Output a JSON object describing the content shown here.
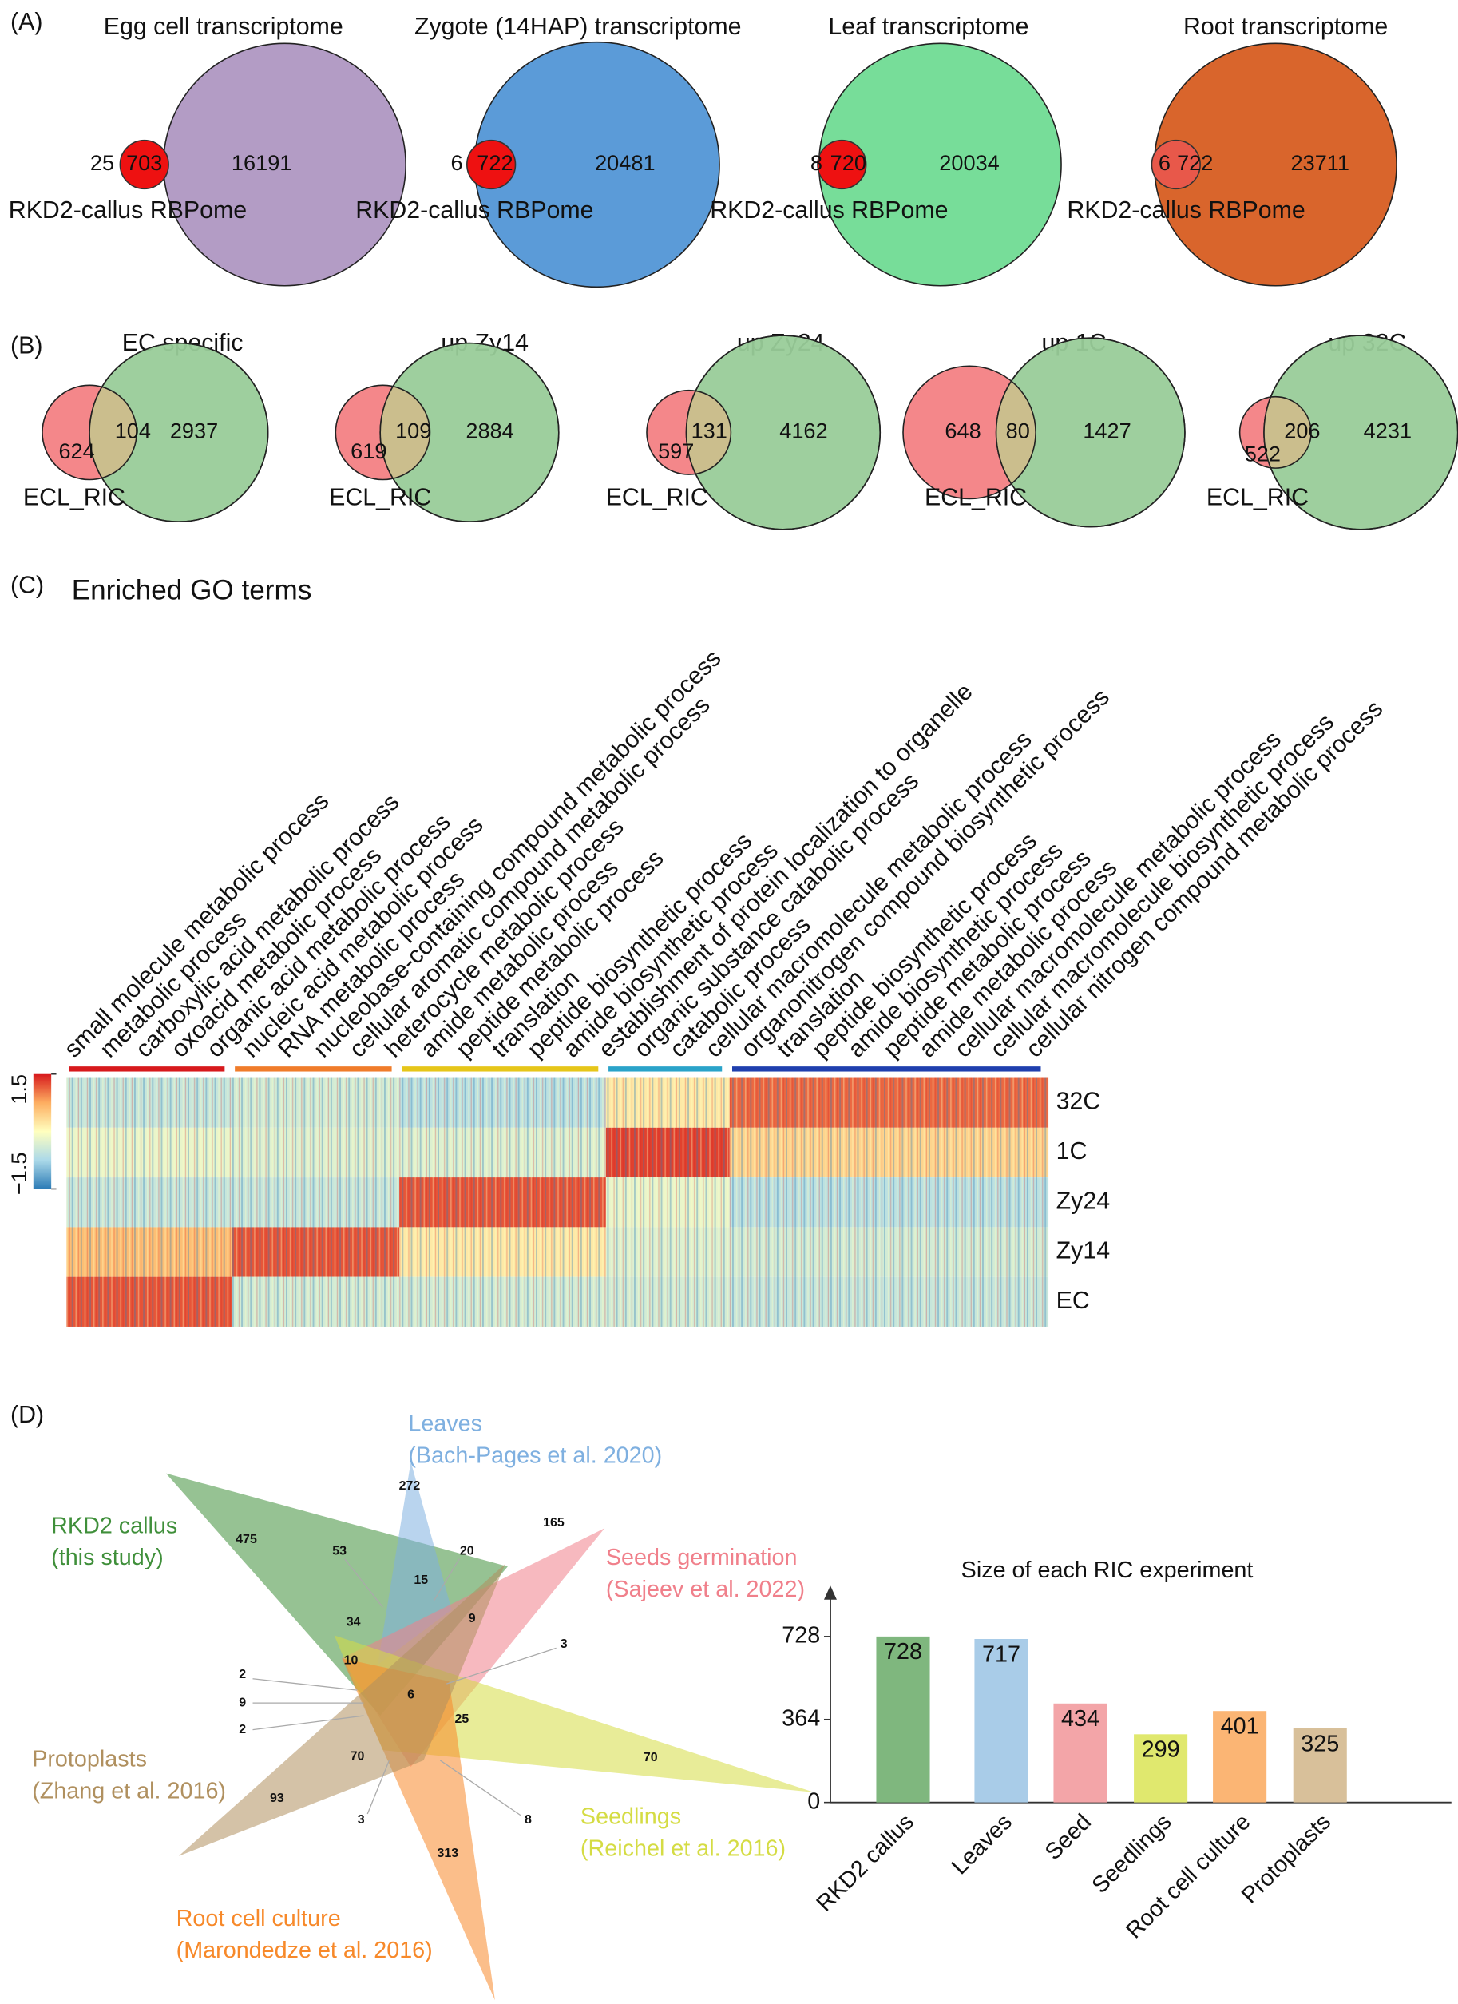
{
  "panel_a": {
    "label": "(A)",
    "rbpome_label": "RKD2-callus RBPome",
    "sets": [
      {
        "title": "Egg cell transcriptome",
        "color": "#b39cc5",
        "only_rbpome": 25,
        "overlap": 703,
        "only_transcriptome": 16191
      },
      {
        "title": "Zygote (14HAP) transcriptome",
        "color": "#5b9bd8",
        "only_rbpome": 6,
        "overlap": 722,
        "only_transcriptome": 20481
      },
      {
        "title": "Leaf transcriptome",
        "color": "#77dd99",
        "only_rbpome": 8,
        "overlap": 720,
        "only_transcriptome": 20034
      },
      {
        "title": "Root transcriptome",
        "color": "#d9652c",
        "only_rbpome": 6,
        "overlap": 722,
        "only_transcriptome": 23711
      }
    ]
  },
  "panel_b": {
    "label": "(B)",
    "ecl_label": "ECL_RIC",
    "sets": [
      {
        "title": "EC specific",
        "ecl_only": 624,
        "overlap": 104,
        "other_only": 2937
      },
      {
        "title": "up Zy14",
        "ecl_only": 619,
        "overlap": 109,
        "other_only": 2884
      },
      {
        "title": "up Zy24",
        "ecl_only": 597,
        "overlap": 131,
        "other_only": 4162
      },
      {
        "title": "up 1C",
        "ecl_only": 648,
        "overlap": 80,
        "other_only": 1427
      },
      {
        "title": "up 32C",
        "ecl_only": 522,
        "overlap": 206,
        "other_only": 4231
      }
    ]
  },
  "panel_c": {
    "label": "(C)",
    "title": "Enriched GO terms",
    "go_terms": [
      "small molecule metabolic process",
      "metabolic process",
      "carboxylic acid metabolic process",
      "oxoacid metabolic process",
      "organic acid metabolic process",
      "nucleic acid metabolic process",
      "RNA metabolic process",
      "nucleobase-containing compound metabolic process",
      "cellular aromatic compound metabolic process",
      "heterocycle metabolic process",
      "amide metabolic process",
      "peptide metabolic process",
      "translation",
      "peptide biosynthetic process",
      "amide biosynthetic process",
      "establishment of protein localization to organelle",
      "organic substance catabolic process",
      "catabolic process",
      "cellular macromolecule metabolic process",
      "organonitrogen compound biosynthetic process",
      "translation",
      "peptide biosynthetic process",
      "amide biosynthetic process",
      "peptide metabolic process",
      "amide metabolic process",
      "cellular macromolecule metabolic process",
      "cellular macromolecule biosynthetic process",
      "cellular nitrogen compound metabolic process"
    ],
    "rows": [
      "32C",
      "1C",
      "Zy24",
      "Zy14",
      "EC"
    ],
    "clusters": [
      {
        "color": "#d7191c",
        "values": [
          -0.5,
          -0.2,
          -0.5,
          0.6,
          1.2
        ]
      },
      {
        "color": "#f07c2a",
        "values": [
          -0.4,
          -0.3,
          -0.5,
          1.2,
          -0.4
        ]
      },
      {
        "color": "#e6c619",
        "values": [
          -0.6,
          -0.3,
          1.2,
          0.2,
          -0.4
        ]
      },
      {
        "color": "#2aa3c9",
        "values": [
          0.2,
          1.3,
          -0.2,
          -0.3,
          -0.4
        ]
      },
      {
        "color": "#1f3fae",
        "values": [
          1.1,
          0.4,
          -0.6,
          -0.4,
          -0.5
        ]
      }
    ],
    "color_lim": [
      -1.5,
      1.5
    ],
    "color_ticks": [
      1.5,
      {
        "value": -1.5,
        "label": "−1.5"
      }
    ]
  },
  "panel_d": {
    "label": "(D)",
    "sets": [
      {
        "name": "RKD2 callus",
        "source": "(this study)",
        "color": "#3f8f3a"
      },
      {
        "name": "Leaves",
        "source": "(Bach-Pages et al. 2020)",
        "color": "#7fb0e0"
      },
      {
        "name": "Seeds germination",
        "source": "(Sajeev et al. 2022)",
        "color": "#f0808b"
      },
      {
        "name": "Seedlings",
        "source": "(Reichel et al. 2016)",
        "color": "#d5dc44"
      },
      {
        "name": "Root cell culture",
        "source": "(Marondedze et al. 2016)",
        "color": "#f7892a"
      },
      {
        "name": "Protoplasts",
        "source": "(Zhang et al. 2016)",
        "color": "#b0905f"
      }
    ],
    "counts": [
      475,
      53,
      272,
      20,
      165,
      15,
      34,
      9,
      3,
      10,
      6,
      2,
      9,
      2,
      25,
      70,
      70,
      93,
      3,
      8,
      313
    ]
  },
  "chart_data": {
    "type": "bar",
    "title": "Size of each RIC experiment",
    "categories": [
      "RKD2 callus",
      "Leaves",
      "Seed",
      "Seedlings",
      "Root cell culture",
      "Protoplasts"
    ],
    "values": [
      728,
      717,
      434,
      299,
      401,
      325
    ],
    "colors": [
      "#7fb77e",
      "#a9cce8",
      "#f3a5a8",
      "#e0e86e",
      "#fbb574",
      "#d8c09a"
    ],
    "ylim": [
      0,
      940
    ],
    "yticks": [
      0,
      364,
      728
    ]
  }
}
